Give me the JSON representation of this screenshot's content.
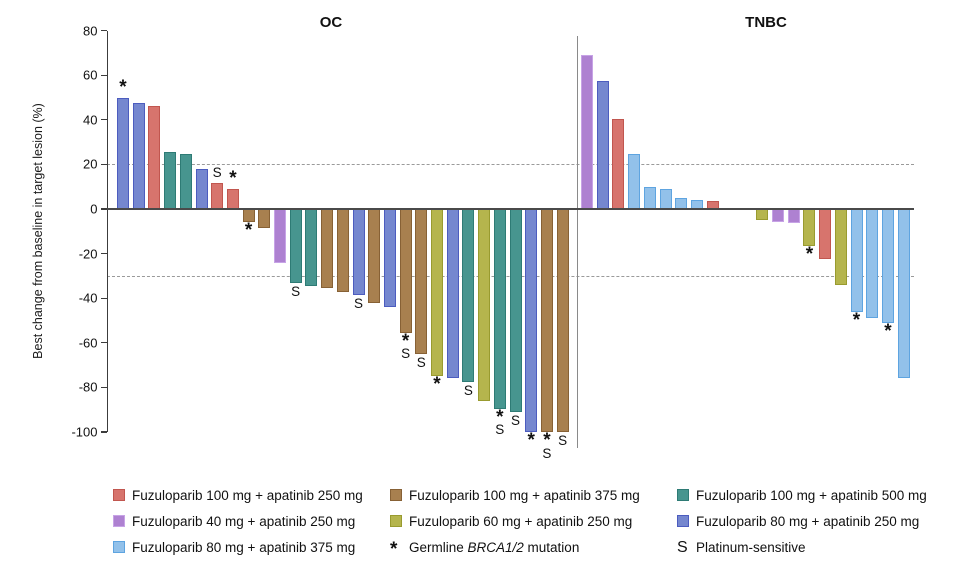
{
  "chart_data": {
    "type": "bar",
    "subtype": "waterfall",
    "ylabel": "Best change from baseline in target lesion (%)",
    "ylim": [
      -100,
      80
    ],
    "yticks": [
      80,
      60,
      40,
      20,
      0,
      -20,
      -40,
      -60,
      -80,
      -100
    ],
    "ref_lines_dashed": [
      20,
      -30
    ],
    "grid": "off",
    "legend_position": "bottom",
    "colors": {
      "red": {
        "fill": "#D7746D",
        "edge": "#C1564F"
      },
      "violet": {
        "fill": "#AE81D1",
        "edge": "#C7A3E6"
      },
      "lightblue": {
        "fill": "#92C1EA",
        "edge": "#5EA4E0"
      },
      "brown": {
        "fill": "#A8804F",
        "edge": "#876135"
      },
      "yellowgreen": {
        "fill": "#B5B54D",
        "edge": "#999B2F"
      },
      "teal": {
        "fill": "#47958F",
        "edge": "#2E7B75"
      },
      "bluepurple": {
        "fill": "#7587CF",
        "edge": "#4C5CBF"
      }
    },
    "marker_meanings": {
      "*": "Germline BRCA1/2 mutation",
      "S": "Platinum-sensitive"
    },
    "groups": [
      {
        "name": "OC",
        "bars": [
          {
            "value": 50,
            "color": "bluepurple",
            "marker": "*"
          },
          {
            "value": 47.5,
            "color": "bluepurple"
          },
          {
            "value": 46,
            "color": "red"
          },
          {
            "value": 25.5,
            "color": "teal"
          },
          {
            "value": 24.5,
            "color": "teal"
          },
          {
            "value": 18,
            "color": "bluepurple"
          },
          {
            "value": 11.5,
            "color": "red",
            "marker": "S"
          },
          {
            "value": 9,
            "color": "red",
            "marker": "*"
          },
          {
            "value": -6,
            "color": "brown",
            "marker": "*"
          },
          {
            "value": -8.5,
            "color": "brown"
          },
          {
            "value": -24,
            "color": "violet"
          },
          {
            "value": -33,
            "color": "teal",
            "marker": "S"
          },
          {
            "value": -34.5,
            "color": "teal"
          },
          {
            "value": -35.5,
            "color": "brown"
          },
          {
            "value": -37,
            "color": "brown"
          },
          {
            "value": -38.5,
            "color": "bluepurple",
            "marker": "S"
          },
          {
            "value": -42,
            "color": "brown"
          },
          {
            "value": -44,
            "color": "bluepurple"
          },
          {
            "value": -55.5,
            "color": "brown",
            "marker": "*S"
          },
          {
            "value": -65,
            "color": "brown",
            "marker": "S"
          },
          {
            "value": -75,
            "color": "yellowgreen",
            "marker": "*"
          },
          {
            "value": -76,
            "color": "bluepurple"
          },
          {
            "value": -77.5,
            "color": "teal",
            "marker": "S"
          },
          {
            "value": -86,
            "color": "yellowgreen"
          },
          {
            "value": -89.5,
            "color": "teal",
            "marker": "*S"
          },
          {
            "value": -91,
            "color": "teal",
            "marker": "S"
          },
          {
            "value": -100,
            "color": "bluepurple",
            "marker": "*"
          },
          {
            "value": -100,
            "color": "brown",
            "marker": "*S"
          },
          {
            "value": -100,
            "color": "brown",
            "marker": "S"
          }
        ]
      },
      {
        "name": "TNBC",
        "bars": [
          {
            "value": 69,
            "color": "violet"
          },
          {
            "value": 57.5,
            "color": "bluepurple"
          },
          {
            "value": 40.5,
            "color": "red"
          },
          {
            "value": 24.5,
            "color": "lightblue"
          },
          {
            "value": 10,
            "color": "lightblue"
          },
          {
            "value": 9,
            "color": "lightblue"
          },
          {
            "value": 5,
            "color": "lightblue"
          },
          {
            "value": 4,
            "color": "lightblue"
          },
          {
            "value": 3.5,
            "color": "red"
          },
          {
            "value": -5,
            "color": "yellowgreen",
            "gap_before": true
          },
          {
            "value": -6,
            "color": "violet"
          },
          {
            "value": -6.5,
            "color": "violet"
          },
          {
            "value": -16.5,
            "color": "yellowgreen",
            "marker": "*"
          },
          {
            "value": -22.5,
            "color": "red"
          },
          {
            "value": -34,
            "color": "yellowgreen"
          },
          {
            "value": -46,
            "color": "lightblue",
            "marker": "*"
          },
          {
            "value": -49,
            "color": "lightblue"
          },
          {
            "value": -51,
            "color": "lightblue",
            "marker": "*"
          },
          {
            "value": -76,
            "color": "lightblue"
          }
        ]
      }
    ]
  },
  "legend": {
    "columns": [
      {
        "items": [
          {
            "swatch": "red",
            "label": "Fuzuloparib 100 mg + apatinib 250 mg"
          },
          {
            "swatch": "violet",
            "label": "Fuzuloparib 40 mg + apatinib 250 mg"
          },
          {
            "swatch": "lightblue",
            "label": "Fuzuloparib 80 mg + apatinib 375 mg"
          }
        ]
      },
      {
        "items": [
          {
            "swatch": "brown",
            "label": "Fuzuloparib 100 mg + apatinib 375 mg"
          },
          {
            "swatch": "yellowgreen",
            "label": "Fuzuloparib 60 mg + apatinib 250 mg"
          },
          {
            "symbol": "*",
            "label_pre": "Germline ",
            "label_italic": "BRCA1/2",
            "label_post": " mutation"
          }
        ]
      },
      {
        "items": [
          {
            "swatch": "teal",
            "label": "Fuzuloparib 100 mg + apatinib 500 mg"
          },
          {
            "swatch": "bluepurple",
            "label": "Fuzuloparib 80 mg + apatinib 250 mg"
          },
          {
            "symbol": "S",
            "label": "Platinum-sensitive"
          }
        ]
      }
    ]
  }
}
